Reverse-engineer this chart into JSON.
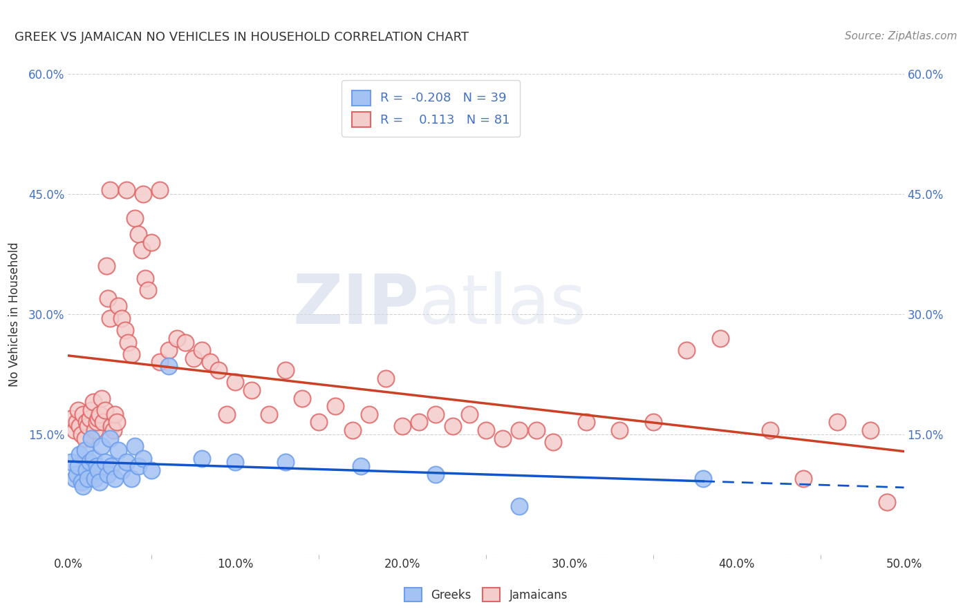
{
  "title": "GREEK VS JAMAICAN NO VEHICLES IN HOUSEHOLD CORRELATION CHART",
  "source": "Source: ZipAtlas.com",
  "ylabel": "No Vehicles in Household",
  "xlim": [
    0.0,
    0.5
  ],
  "ylim": [
    0.0,
    0.6
  ],
  "xtick_labels": [
    "0.0%",
    "",
    "10.0%",
    "",
    "20.0%",
    "",
    "30.0%",
    "",
    "40.0%",
    "",
    "50.0%"
  ],
  "xtick_vals": [
    0.0,
    0.05,
    0.1,
    0.15,
    0.2,
    0.25,
    0.3,
    0.35,
    0.4,
    0.45,
    0.5
  ],
  "ytick_vals": [
    0.0,
    0.15,
    0.3,
    0.45,
    0.6
  ],
  "ytick_labels": [
    "",
    "15.0%",
    "30.0%",
    "45.0%",
    "60.0%"
  ],
  "greek_color": "#a4c2f4",
  "greek_edge_color": "#6d9eeb",
  "jamaican_color": "#f4cccc",
  "jamaican_edge_color": "#e06666",
  "greek_line_color": "#1155cc",
  "jamaican_line_color": "#cc4125",
  "tick_color": "#4472c4",
  "greek_R": -0.208,
  "greek_N": 39,
  "jamaican_R": 0.113,
  "jamaican_N": 81,
  "watermark_zip": "ZIP",
  "watermark_atlas": "atlas",
  "background_color": "#ffffff",
  "grid_color": "#cccccc",
  "greek_scatter_x": [
    0.002,
    0.004,
    0.005,
    0.006,
    0.007,
    0.008,
    0.009,
    0.01,
    0.011,
    0.012,
    0.013,
    0.014,
    0.015,
    0.016,
    0.017,
    0.018,
    0.019,
    0.02,
    0.022,
    0.024,
    0.025,
    0.026,
    0.028,
    0.03,
    0.032,
    0.035,
    0.038,
    0.04,
    0.042,
    0.045,
    0.05,
    0.06,
    0.08,
    0.1,
    0.13,
    0.175,
    0.22,
    0.27,
    0.38
  ],
  "greek_scatter_y": [
    0.115,
    0.095,
    0.1,
    0.11,
    0.125,
    0.09,
    0.085,
    0.13,
    0.105,
    0.095,
    0.115,
    0.145,
    0.12,
    0.095,
    0.11,
    0.105,
    0.09,
    0.135,
    0.115,
    0.1,
    0.145,
    0.11,
    0.095,
    0.13,
    0.105,
    0.115,
    0.095,
    0.135,
    0.11,
    0.12,
    0.105,
    0.235,
    0.12,
    0.115,
    0.115,
    0.11,
    0.1,
    0.06,
    0.095
  ],
  "jamaican_scatter_x": [
    0.002,
    0.004,
    0.005,
    0.006,
    0.007,
    0.008,
    0.009,
    0.01,
    0.011,
    0.012,
    0.013,
    0.014,
    0.015,
    0.016,
    0.017,
    0.018,
    0.019,
    0.02,
    0.021,
    0.022,
    0.023,
    0.024,
    0.025,
    0.026,
    0.027,
    0.028,
    0.029,
    0.03,
    0.032,
    0.034,
    0.036,
    0.038,
    0.04,
    0.042,
    0.044,
    0.046,
    0.048,
    0.05,
    0.055,
    0.06,
    0.065,
    0.07,
    0.075,
    0.08,
    0.085,
    0.09,
    0.095,
    0.1,
    0.11,
    0.12,
    0.13,
    0.14,
    0.15,
    0.16,
    0.17,
    0.18,
    0.19,
    0.2,
    0.21,
    0.22,
    0.23,
    0.24,
    0.25,
    0.26,
    0.27,
    0.28,
    0.29,
    0.31,
    0.33,
    0.35,
    0.37,
    0.39,
    0.42,
    0.44,
    0.46,
    0.48,
    0.49,
    0.025,
    0.035,
    0.045,
    0.055
  ],
  "jamaican_scatter_y": [
    0.17,
    0.155,
    0.165,
    0.18,
    0.16,
    0.15,
    0.175,
    0.145,
    0.165,
    0.16,
    0.17,
    0.18,
    0.19,
    0.155,
    0.165,
    0.17,
    0.175,
    0.195,
    0.165,
    0.18,
    0.36,
    0.32,
    0.295,
    0.16,
    0.155,
    0.175,
    0.165,
    0.31,
    0.295,
    0.28,
    0.265,
    0.25,
    0.42,
    0.4,
    0.38,
    0.345,
    0.33,
    0.39,
    0.24,
    0.255,
    0.27,
    0.265,
    0.245,
    0.255,
    0.24,
    0.23,
    0.175,
    0.215,
    0.205,
    0.175,
    0.23,
    0.195,
    0.165,
    0.185,
    0.155,
    0.175,
    0.22,
    0.16,
    0.165,
    0.175,
    0.16,
    0.175,
    0.155,
    0.145,
    0.155,
    0.155,
    0.14,
    0.165,
    0.155,
    0.165,
    0.255,
    0.27,
    0.155,
    0.095,
    0.165,
    0.155,
    0.065,
    0.455,
    0.455,
    0.45,
    0.455
  ]
}
